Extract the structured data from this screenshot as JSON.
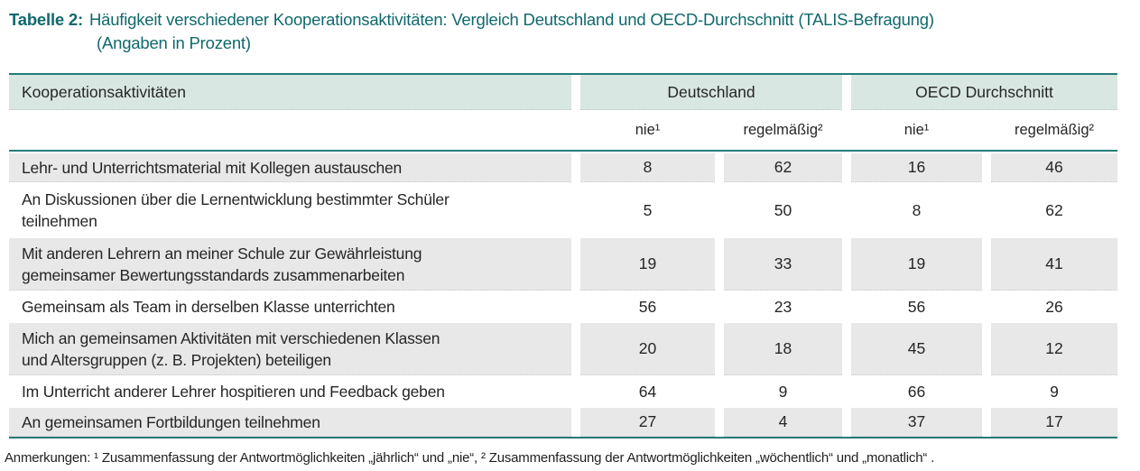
{
  "title": {
    "prefix": "Tabelle 2:",
    "line1": "Häufigkeit verschiedener Kooperationsaktivitäten: Vergleich Deutschland und OECD-Durchschnitt (TALIS-Befragung)",
    "line2": "(Angaben in Prozent)"
  },
  "colors": {
    "title_teal": "#10696d",
    "rule_teal": "#267c7a",
    "header_fill": "#d9e7e3",
    "row_shaded_fill": "#e8e8e8",
    "text": "#262626"
  },
  "table": {
    "col_header": "Kooperationsaktivitäten",
    "groups": [
      "Deutschland",
      "OECD Durchschnitt"
    ],
    "subheaders": [
      "nie¹",
      "regelmäßig²",
      "nie¹",
      "regelmäßig²"
    ],
    "rows": [
      {
        "label_lines": [
          "Lehr- und Unterrichtsmaterial mit Kollegen austauschen"
        ],
        "values": [
          "8",
          "62",
          "16",
          "46"
        ]
      },
      {
        "label_lines": [
          "An Diskussionen über die Lernentwicklung bestimmter Schüler",
          "teilnehmen"
        ],
        "values": [
          "5",
          "50",
          "8",
          "62"
        ]
      },
      {
        "label_lines": [
          "Mit anderen Lehrern an meiner Schule zur Gewährleistung",
          "gemeinsamer Bewertungsstandards zusammenarbeiten"
        ],
        "values": [
          "19",
          "33",
          "19",
          "41"
        ]
      },
      {
        "label_lines": [
          "Gemeinsam als Team in derselben Klasse unterrichten"
        ],
        "values": [
          "56",
          "23",
          "56",
          "26"
        ]
      },
      {
        "label_lines": [
          "Mich an gemeinsamen Aktivitäten mit verschiedenen Klassen",
          "und Altersgruppen (z. B. Projekten) beteiligen"
        ],
        "values": [
          "20",
          "18",
          "45",
          "12"
        ]
      },
      {
        "label_lines": [
          "Im Unterricht anderer Lehrer hospitieren und Feedback geben"
        ],
        "values": [
          "64",
          "9",
          "66",
          "9"
        ]
      },
      {
        "label_lines": [
          "An gemeinsamen Fortbildungen teilnehmen"
        ],
        "values": [
          "27",
          "4",
          "37",
          "17"
        ]
      }
    ]
  },
  "footnote": "Anmerkungen: ¹ Zusammenfassung der Antwortmöglichkeiten „jährlich“ und „nie“, ² Zusammenfassung der Antwortmöglichkeiten „wöchentlich“ und „monatlich“ .",
  "chart_data": {
    "type": "table",
    "title": "Tabelle 2: Häufigkeit verschiedener Kooperationsaktivitäten: Vergleich Deutschland und OECD-Durchschnitt (TALIS-Befragung) (Angaben in Prozent)",
    "columns": [
      "Kooperationsaktivitäten",
      "Deutschland nie¹",
      "Deutschland regelmäßig²",
      "OECD Durchschnitt nie¹",
      "OECD Durchschnitt regelmäßig²"
    ],
    "rows": [
      [
        "Lehr- und Unterrichtsmaterial mit Kollegen austauschen",
        8,
        62,
        16,
        46
      ],
      [
        "An Diskussionen über die Lernentwicklung bestimmter Schüler teilnehmen",
        5,
        50,
        8,
        62
      ],
      [
        "Mit anderen Lehrern an meiner Schule zur Gewährleistung gemeinsamer Bewertungsstandards zusammenarbeiten",
        19,
        33,
        19,
        41
      ],
      [
        "Gemeinsam als Team in derselben Klasse unterrichten",
        56,
        23,
        56,
        26
      ],
      [
        "Mich an gemeinsamen Aktivitäten mit verschiedenen Klassen und Altersgruppen (z. B. Projekten) beteiligen",
        20,
        18,
        45,
        12
      ],
      [
        "Im Unterricht anderer Lehrer hospitieren und Feedback geben",
        64,
        9,
        66,
        9
      ],
      [
        "An gemeinsamen Fortbildungen teilnehmen",
        27,
        4,
        37,
        17
      ]
    ]
  }
}
